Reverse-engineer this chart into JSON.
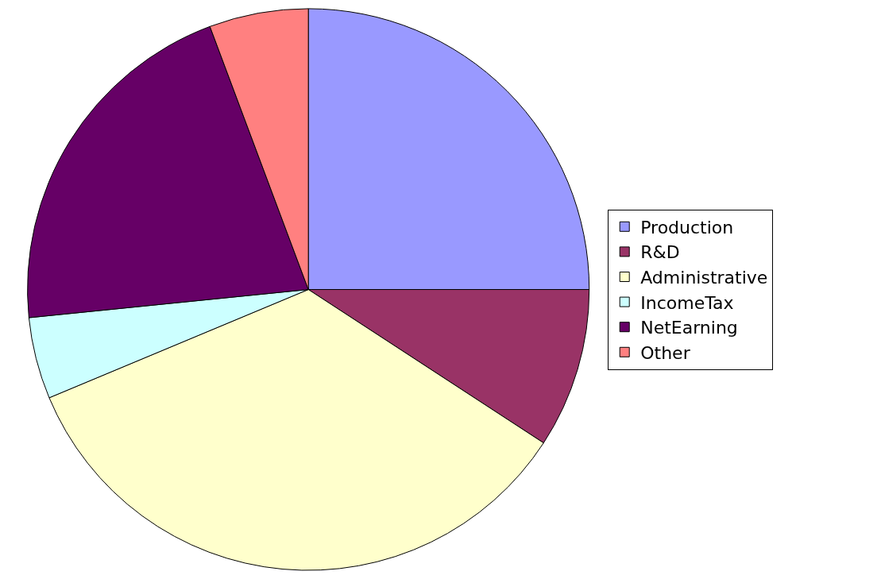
{
  "chart_data": {
    "type": "pie",
    "categories": [
      "Production",
      "R&D",
      "Administrative",
      "IncomeTax",
      "NetEarning",
      "Other"
    ],
    "values": [
      25,
      9.2,
      34.5,
      4.7,
      20.9,
      5.7
    ],
    "colors": [
      "#9999ff",
      "#993366",
      "#ffffcc",
      "#ccffff",
      "#660066",
      "#ff8080"
    ],
    "legend": "right"
  }
}
